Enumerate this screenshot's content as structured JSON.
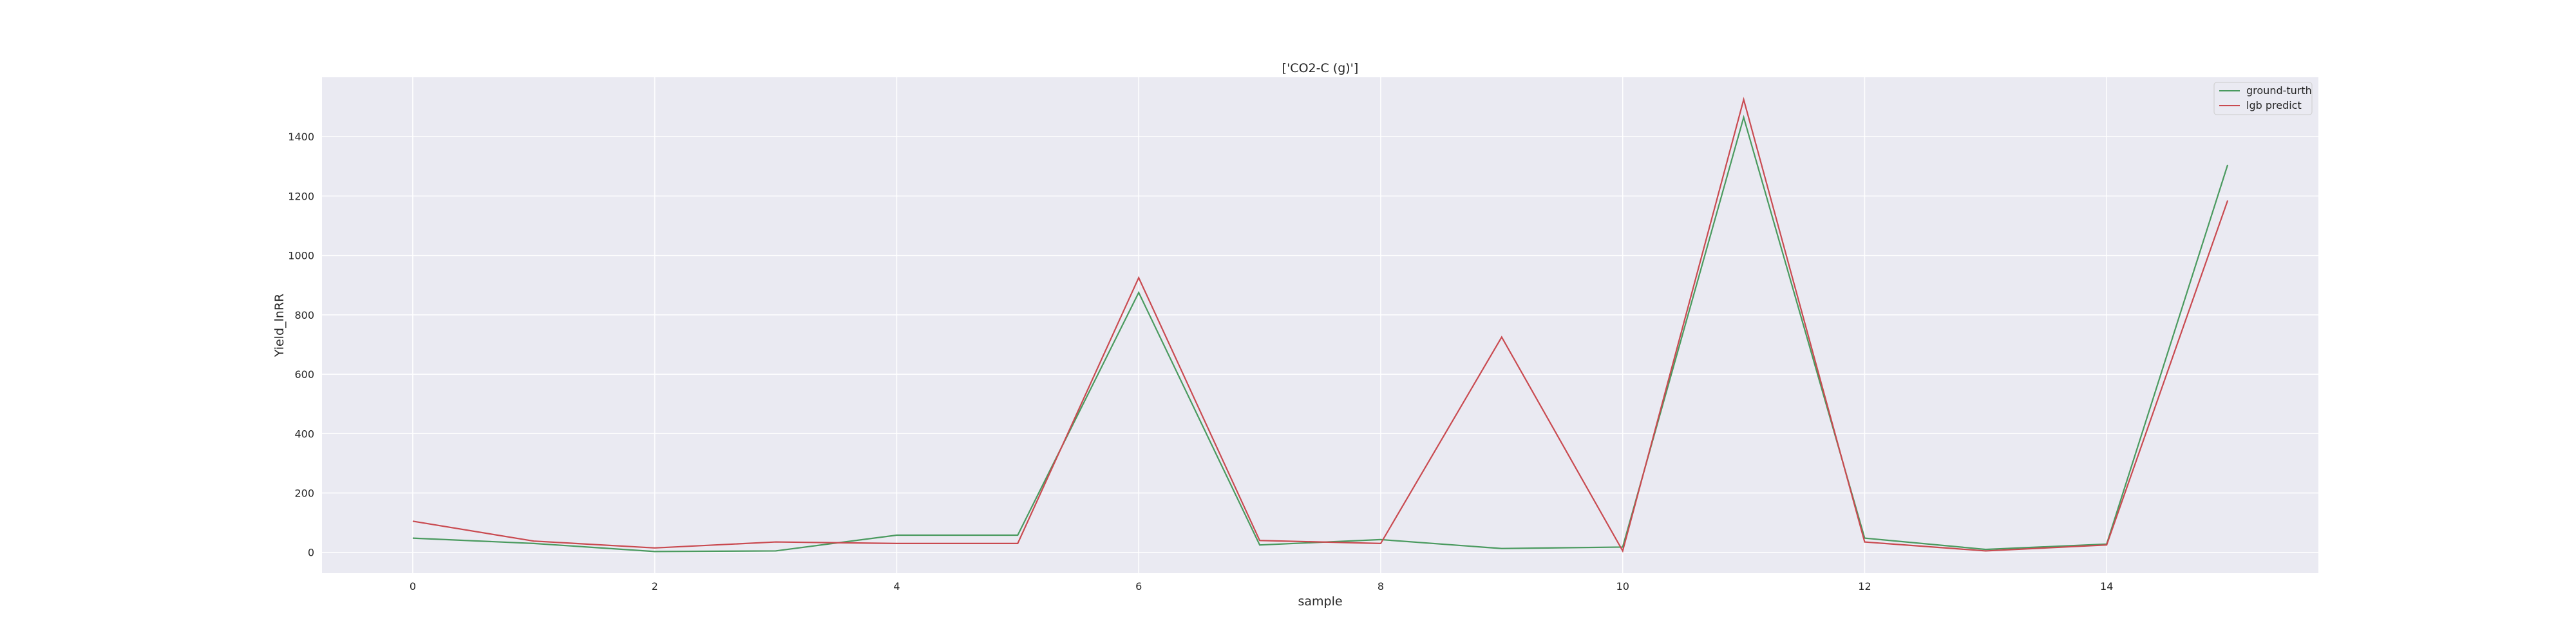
{
  "chart_data": {
    "type": "line",
    "title": "['CO2-C (g)']",
    "xlabel": "sample",
    "ylabel": "Yield_lnRR",
    "x": [
      0,
      1,
      2,
      3,
      4,
      5,
      6,
      7,
      8,
      9,
      10,
      11,
      12,
      13,
      14,
      15
    ],
    "xticks": [
      0,
      2,
      4,
      6,
      8,
      10,
      12,
      14
    ],
    "yticks": [
      0,
      200,
      400,
      600,
      800,
      1000,
      1200,
      1400
    ],
    "xlim": [
      -0.75,
      15.75
    ],
    "ylim": [
      -70,
      1600
    ],
    "grid": true,
    "legend_position": "top-right",
    "series": [
      {
        "name": "ground-turth",
        "color": "#4a9a5f",
        "values": [
          48,
          30,
          3,
          5,
          58,
          58,
          875,
          25,
          43,
          13,
          18,
          1465,
          48,
          10,
          28,
          1305
        ]
      },
      {
        "name": "lgb predict",
        "color": "#c94a50",
        "values": [
          105,
          38,
          15,
          35,
          30,
          30,
          925,
          40,
          30,
          725,
          5,
          1525,
          35,
          5,
          25,
          1185
        ]
      }
    ]
  }
}
